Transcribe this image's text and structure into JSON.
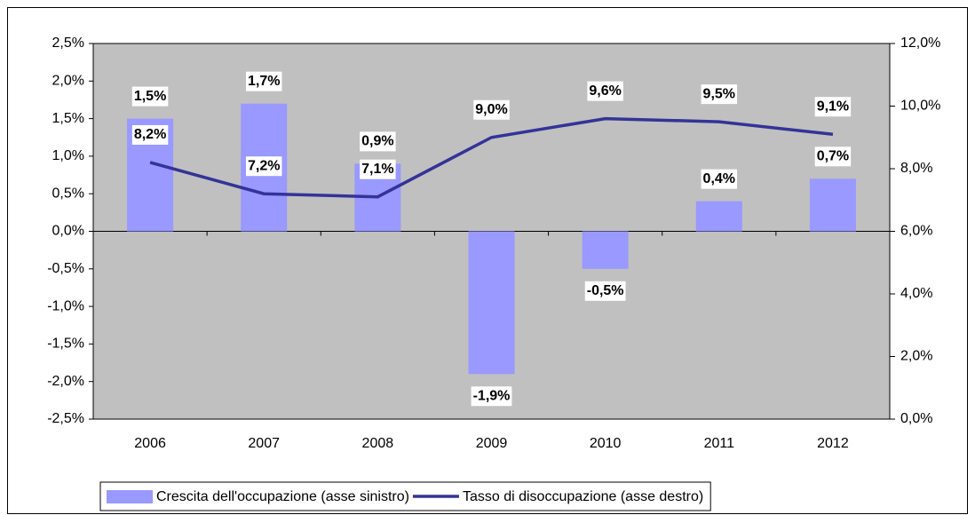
{
  "chart_data": {
    "type": "combo",
    "categories": [
      "2006",
      "2007",
      "2008",
      "2009",
      "2010",
      "2011",
      "2012"
    ],
    "series": [
      {
        "name": "Crescita dell'occupazione (asse sinistro)",
        "type": "bar",
        "color": "#9999ff",
        "values": [
          1.5,
          1.7,
          0.9,
          -1.9,
          -0.5,
          0.4,
          0.7
        ],
        "value_labels": [
          "1,5%",
          "1,7%",
          "0,9%",
          "-1,9%",
          "-0,5%",
          "0,4%",
          "0,7%"
        ]
      },
      {
        "name": "Tasso di disoccupazione (asse destro)",
        "type": "line",
        "axis": "y2",
        "color": "#333399",
        "values": [
          8.2,
          7.2,
          7.1,
          9.0,
          9.6,
          9.5,
          9.1
        ],
        "value_labels": [
          "8,2%",
          "7,2%",
          "7,1%",
          "9,0%",
          "9,6%",
          "9,5%",
          "9,1%"
        ]
      }
    ],
    "ylim": [
      -2.5,
      2.5
    ],
    "yticks": [
      {
        "value": -2.5,
        "label": "-2,5%"
      },
      {
        "value": -2.0,
        "label": "-2,0%"
      },
      {
        "value": -1.5,
        "label": "-1,5%"
      },
      {
        "value": -1.0,
        "label": "-1,0%"
      },
      {
        "value": -0.5,
        "label": "-0,5%"
      },
      {
        "value": 0,
        "label": "0,0%"
      },
      {
        "value": 0.5,
        "label": "0,5%"
      },
      {
        "value": 1.0,
        "label": "1,0%"
      },
      {
        "value": 1.5,
        "label": "1,5%"
      },
      {
        "value": 2.0,
        "label": "2,0%"
      },
      {
        "value": 2.5,
        "label": "2,5%"
      }
    ],
    "y2lim": [
      0,
      12
    ],
    "y2ticks": [
      {
        "value": 0,
        "label": "0,0%"
      },
      {
        "value": 2,
        "label": "2,0%"
      },
      {
        "value": 4,
        "label": "4,0%"
      },
      {
        "value": 6,
        "label": "6,0%"
      },
      {
        "value": 8,
        "label": "8,0%"
      },
      {
        "value": 10,
        "label": "10,0%"
      },
      {
        "value": 12,
        "label": "12,0%"
      }
    ],
    "grid": false,
    "plot_background": "#c0c0c0",
    "legend": "bottom"
  }
}
